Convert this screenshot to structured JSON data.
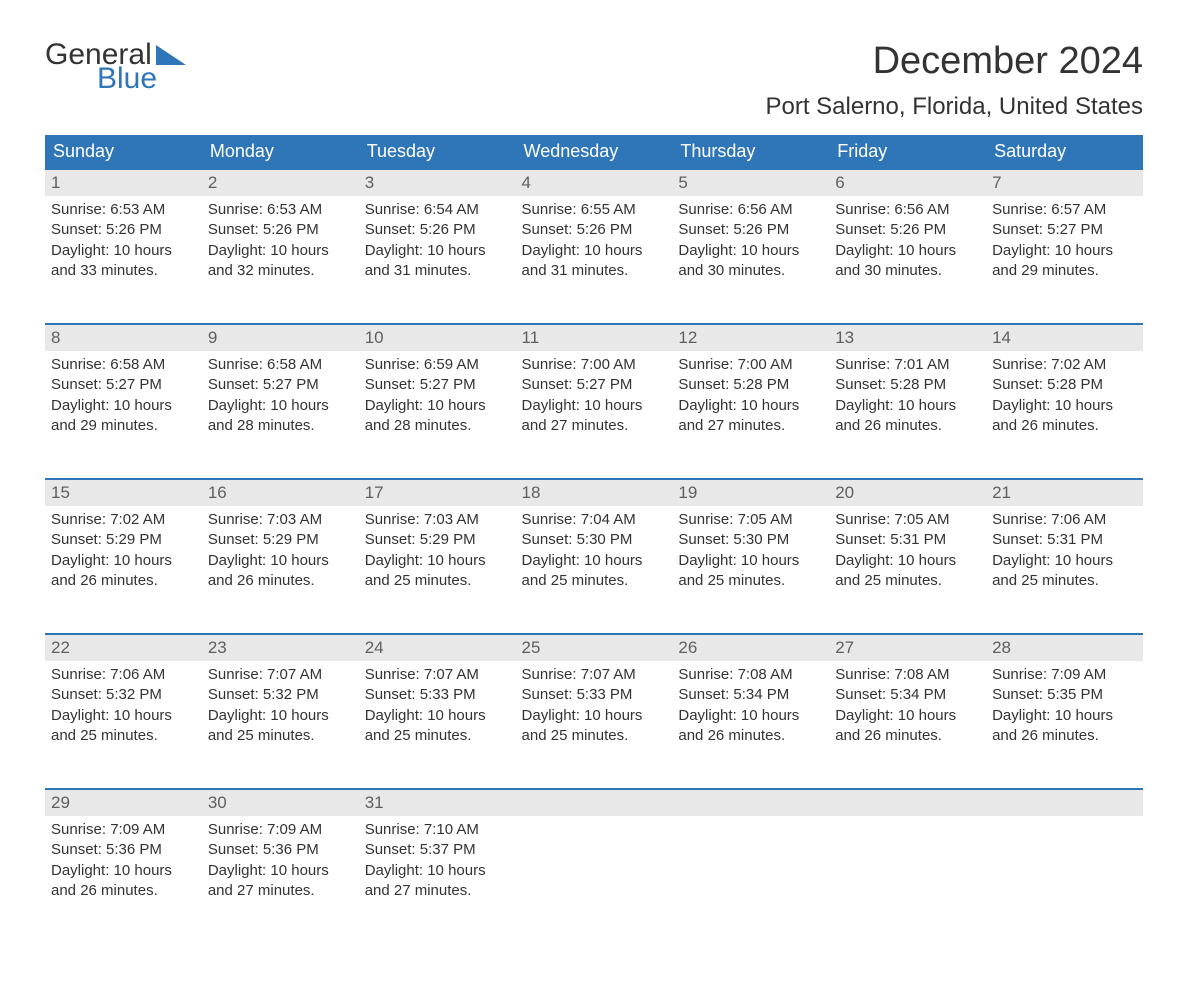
{
  "logo": {
    "word1": "General",
    "word2": "Blue"
  },
  "title": "December 2024",
  "location": "Port Salerno, Florida, United States",
  "colors": {
    "header_bg": "#2f76b8",
    "header_text": "#ffffff",
    "daynum_bg": "#e8e8e8",
    "daynum_text": "#5f5f5f",
    "body_text": "#333333",
    "accent": "#2f76b8"
  },
  "columns": [
    "Sunday",
    "Monday",
    "Tuesday",
    "Wednesday",
    "Thursday",
    "Friday",
    "Saturday"
  ],
  "weeks": [
    [
      {
        "day": "1",
        "sunrise": "6:53 AM",
        "sunset": "5:26 PM",
        "daylight": "10 hours and 33 minutes."
      },
      {
        "day": "2",
        "sunrise": "6:53 AM",
        "sunset": "5:26 PM",
        "daylight": "10 hours and 32 minutes."
      },
      {
        "day": "3",
        "sunrise": "6:54 AM",
        "sunset": "5:26 PM",
        "daylight": "10 hours and 31 minutes."
      },
      {
        "day": "4",
        "sunrise": "6:55 AM",
        "sunset": "5:26 PM",
        "daylight": "10 hours and 31 minutes."
      },
      {
        "day": "5",
        "sunrise": "6:56 AM",
        "sunset": "5:26 PM",
        "daylight": "10 hours and 30 minutes."
      },
      {
        "day": "6",
        "sunrise": "6:56 AM",
        "sunset": "5:26 PM",
        "daylight": "10 hours and 30 minutes."
      },
      {
        "day": "7",
        "sunrise": "6:57 AM",
        "sunset": "5:27 PM",
        "daylight": "10 hours and 29 minutes."
      }
    ],
    [
      {
        "day": "8",
        "sunrise": "6:58 AM",
        "sunset": "5:27 PM",
        "daylight": "10 hours and 29 minutes."
      },
      {
        "day": "9",
        "sunrise": "6:58 AM",
        "sunset": "5:27 PM",
        "daylight": "10 hours and 28 minutes."
      },
      {
        "day": "10",
        "sunrise": "6:59 AM",
        "sunset": "5:27 PM",
        "daylight": "10 hours and 28 minutes."
      },
      {
        "day": "11",
        "sunrise": "7:00 AM",
        "sunset": "5:27 PM",
        "daylight": "10 hours and 27 minutes."
      },
      {
        "day": "12",
        "sunrise": "7:00 AM",
        "sunset": "5:28 PM",
        "daylight": "10 hours and 27 minutes."
      },
      {
        "day": "13",
        "sunrise": "7:01 AM",
        "sunset": "5:28 PM",
        "daylight": "10 hours and 26 minutes."
      },
      {
        "day": "14",
        "sunrise": "7:02 AM",
        "sunset": "5:28 PM",
        "daylight": "10 hours and 26 minutes."
      }
    ],
    [
      {
        "day": "15",
        "sunrise": "7:02 AM",
        "sunset": "5:29 PM",
        "daylight": "10 hours and 26 minutes."
      },
      {
        "day": "16",
        "sunrise": "7:03 AM",
        "sunset": "5:29 PM",
        "daylight": "10 hours and 26 minutes."
      },
      {
        "day": "17",
        "sunrise": "7:03 AM",
        "sunset": "5:29 PM",
        "daylight": "10 hours and 25 minutes."
      },
      {
        "day": "18",
        "sunrise": "7:04 AM",
        "sunset": "5:30 PM",
        "daylight": "10 hours and 25 minutes."
      },
      {
        "day": "19",
        "sunrise": "7:05 AM",
        "sunset": "5:30 PM",
        "daylight": "10 hours and 25 minutes."
      },
      {
        "day": "20",
        "sunrise": "7:05 AM",
        "sunset": "5:31 PM",
        "daylight": "10 hours and 25 minutes."
      },
      {
        "day": "21",
        "sunrise": "7:06 AM",
        "sunset": "5:31 PM",
        "daylight": "10 hours and 25 minutes."
      }
    ],
    [
      {
        "day": "22",
        "sunrise": "7:06 AM",
        "sunset": "5:32 PM",
        "daylight": "10 hours and 25 minutes."
      },
      {
        "day": "23",
        "sunrise": "7:07 AM",
        "sunset": "5:32 PM",
        "daylight": "10 hours and 25 minutes."
      },
      {
        "day": "24",
        "sunrise": "7:07 AM",
        "sunset": "5:33 PM",
        "daylight": "10 hours and 25 minutes."
      },
      {
        "day": "25",
        "sunrise": "7:07 AM",
        "sunset": "5:33 PM",
        "daylight": "10 hours and 25 minutes."
      },
      {
        "day": "26",
        "sunrise": "7:08 AM",
        "sunset": "5:34 PM",
        "daylight": "10 hours and 26 minutes."
      },
      {
        "day": "27",
        "sunrise": "7:08 AM",
        "sunset": "5:34 PM",
        "daylight": "10 hours and 26 minutes."
      },
      {
        "day": "28",
        "sunrise": "7:09 AM",
        "sunset": "5:35 PM",
        "daylight": "10 hours and 26 minutes."
      }
    ],
    [
      {
        "day": "29",
        "sunrise": "7:09 AM",
        "sunset": "5:36 PM",
        "daylight": "10 hours and 26 minutes."
      },
      {
        "day": "30",
        "sunrise": "7:09 AM",
        "sunset": "5:36 PM",
        "daylight": "10 hours and 27 minutes."
      },
      {
        "day": "31",
        "sunrise": "7:10 AM",
        "sunset": "5:37 PM",
        "daylight": "10 hours and 27 minutes."
      },
      null,
      null,
      null,
      null
    ]
  ],
  "labels": {
    "sunrise": "Sunrise:",
    "sunset": "Sunset:",
    "daylight": "Daylight:"
  }
}
